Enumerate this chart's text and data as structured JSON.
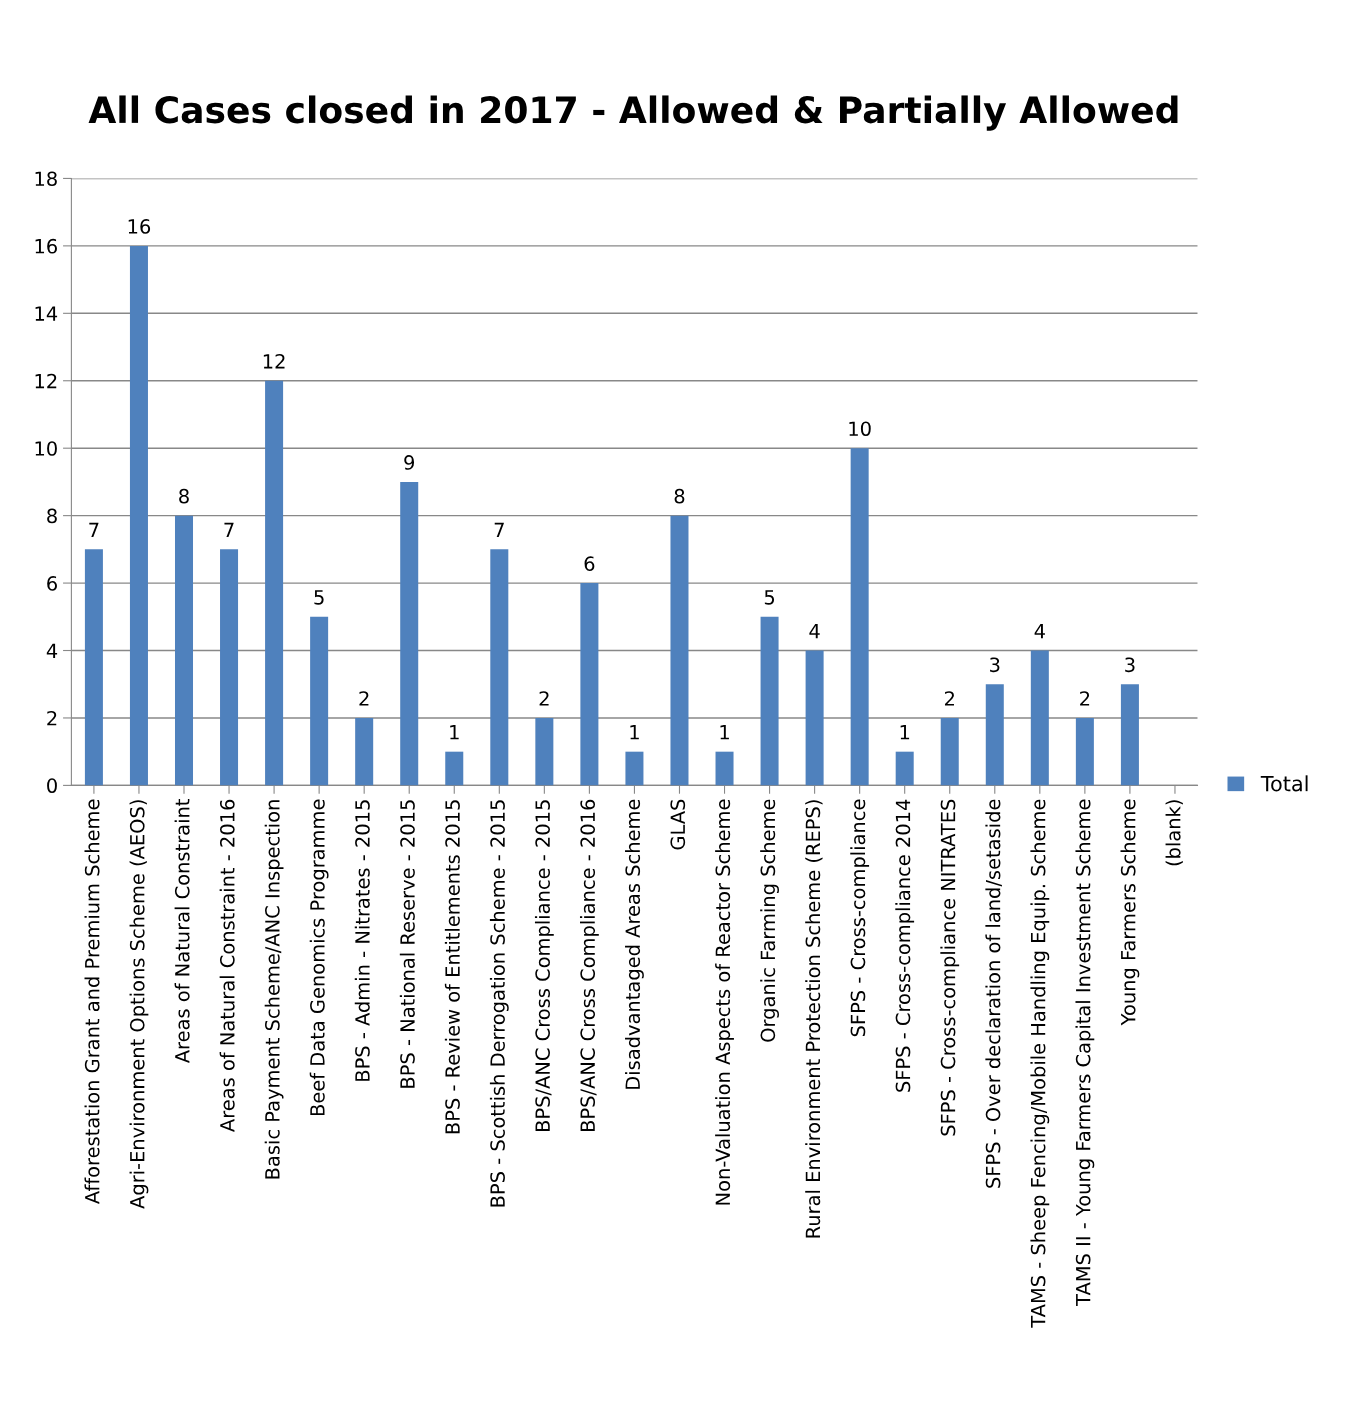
{
  "chart_data": {
    "type": "bar",
    "title": "All Cases closed in 2017 - Allowed & Partially Allowed",
    "categories": [
      "Afforestation Grant and Premium Scheme",
      "Agri-Environment Options Scheme (AEOS)",
      "Areas of Natural Constraint",
      "Areas of Natural Constraint - 2016",
      "Basic Payment Scheme/ANC Inspection",
      "Beef Data Genomics Programme",
      "BPS - Admin - Nitrates - 2015",
      "BPS - National Reserve - 2015",
      "BPS - Review of Entitlements 2015",
      "BPS - Scottish Derrogation Scheme - 2015",
      "BPS/ANC Cross Compliance - 2015",
      "BPS/ANC Cross Compliance - 2016",
      "Disadvantaged Areas Scheme",
      "GLAS",
      "Non-Valuation Aspects of Reactor Scheme",
      "Organic Farming Scheme",
      "Rural Environment Protection Scheme (REPS)",
      "SFPS - Cross-compliance",
      "SFPS - Cross-compliance 2014",
      "SFPS - Cross-compliance NITRATES",
      "SFPS - Over declaration of land/setaside",
      "TAMS - Sheep Fencing/Mobile Handling Equip. Scheme",
      "TAMS II - Young Farmers Capital Investment Scheme",
      "Young Farmers Scheme",
      "(blank)"
    ],
    "series": [
      {
        "name": "Total",
        "color": "#4f81bd",
        "values": [
          7,
          16,
          8,
          7,
          12,
          5,
          2,
          9,
          1,
          7,
          2,
          6,
          1,
          8,
          1,
          5,
          4,
          10,
          1,
          2,
          3,
          4,
          2,
          3,
          null
        ]
      }
    ],
    "ylim": [
      0,
      18
    ],
    "yticks": [
      0,
      2,
      4,
      6,
      8,
      10,
      12,
      14,
      16,
      18
    ],
    "grid": "y",
    "legend": "right",
    "data_labels": true
  }
}
